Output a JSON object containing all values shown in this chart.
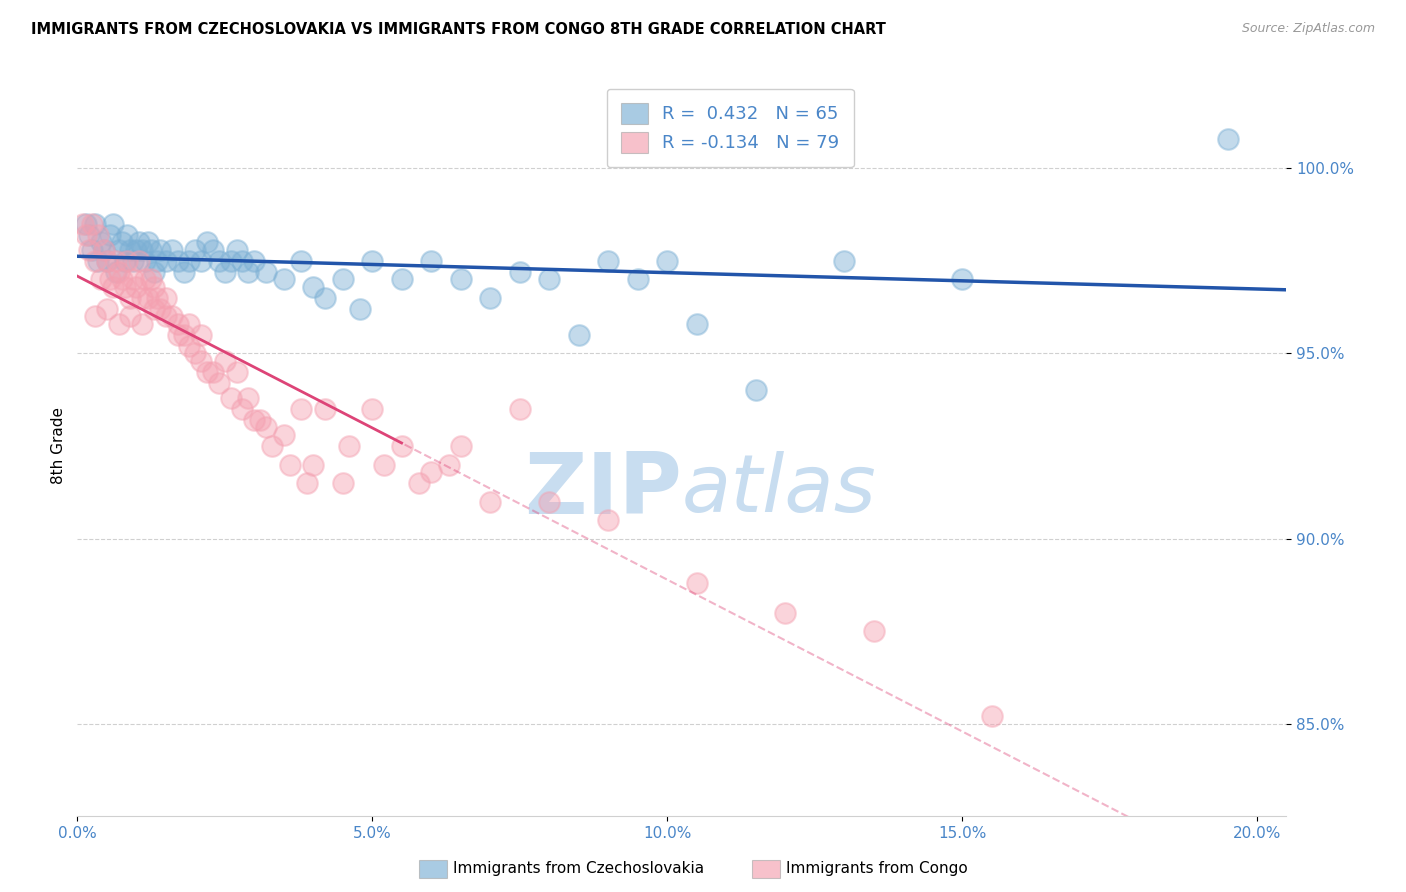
{
  "title": "IMMIGRANTS FROM CZECHOSLOVAKIA VS IMMIGRANTS FROM CONGO 8TH GRADE CORRELATION CHART",
  "source": "Source: ZipAtlas.com",
  "ylabel": "8th Grade",
  "y_ticks": [
    85.0,
    90.0,
    95.0,
    100.0
  ],
  "x_ticks": [
    0.0,
    5.0,
    10.0,
    15.0,
    20.0
  ],
  "xlim": [
    0.0,
    20.5
  ],
  "ylim": [
    82.5,
    102.5
  ],
  "legend_label_blue": "Immigrants from Czechoslovakia",
  "legend_label_pink": "Immigrants from Congo",
  "R_blue": 0.432,
  "N_blue": 65,
  "R_pink": -0.134,
  "N_pink": 79,
  "color_blue": "#7bafd4",
  "color_pink": "#f4a0b0",
  "color_trend_blue": "#2255aa",
  "color_trend_pink": "#dd4477",
  "color_axis_labels": "#4a86c8",
  "watermark_color": "#c8ddf0",
  "blue_x": [
    0.15,
    0.2,
    0.25,
    0.3,
    0.35,
    0.4,
    0.45,
    0.5,
    0.55,
    0.6,
    0.65,
    0.7,
    0.75,
    0.8,
    0.85,
    0.9,
    0.95,
    1.0,
    1.05,
    1.1,
    1.15,
    1.2,
    1.25,
    1.3,
    1.35,
    1.4,
    1.5,
    1.6,
    1.7,
    1.8,
    1.9,
    2.0,
    2.1,
    2.2,
    2.3,
    2.4,
    2.5,
    2.6,
    2.7,
    2.8,
    2.9,
    3.0,
    3.2,
    3.5,
    3.8,
    4.0,
    4.2,
    4.5,
    4.8,
    5.0,
    5.5,
    6.0,
    6.5,
    7.0,
    7.5,
    8.0,
    8.5,
    9.0,
    9.5,
    10.0,
    10.5,
    11.5,
    13.0,
    15.0,
    19.5
  ],
  "blue_y": [
    98.5,
    98.2,
    97.8,
    98.5,
    97.5,
    98.0,
    97.8,
    97.5,
    98.2,
    98.5,
    97.2,
    97.8,
    98.0,
    97.5,
    98.2,
    97.8,
    97.5,
    97.8,
    98.0,
    97.8,
    97.5,
    98.0,
    97.8,
    97.2,
    97.5,
    97.8,
    97.5,
    97.8,
    97.5,
    97.2,
    97.5,
    97.8,
    97.5,
    98.0,
    97.8,
    97.5,
    97.2,
    97.5,
    97.8,
    97.5,
    97.2,
    97.5,
    97.2,
    97.0,
    97.5,
    96.8,
    96.5,
    97.0,
    96.2,
    97.5,
    97.0,
    97.5,
    97.0,
    96.5,
    97.2,
    97.0,
    95.5,
    97.5,
    97.0,
    97.5,
    95.8,
    94.0,
    97.5,
    97.0,
    100.8
  ],
  "pink_x": [
    0.1,
    0.15,
    0.2,
    0.25,
    0.3,
    0.35,
    0.4,
    0.45,
    0.5,
    0.55,
    0.6,
    0.65,
    0.7,
    0.75,
    0.8,
    0.85,
    0.9,
    0.95,
    1.0,
    1.05,
    1.1,
    1.15,
    1.2,
    1.25,
    1.3,
    1.35,
    1.4,
    1.5,
    1.6,
    1.7,
    1.8,
    1.9,
    2.0,
    2.1,
    2.2,
    2.4,
    2.6,
    2.8,
    3.0,
    3.2,
    3.5,
    3.8,
    4.0,
    4.5,
    5.0,
    5.5,
    6.0,
    6.5,
    7.5,
    0.3,
    0.5,
    0.7,
    0.9,
    1.1,
    1.3,
    1.5,
    1.7,
    1.9,
    2.1,
    2.3,
    2.5,
    2.7,
    2.9,
    3.1,
    3.3,
    3.6,
    3.9,
    4.2,
    4.6,
    5.2,
    5.8,
    6.3,
    7.0,
    8.0,
    9.0,
    10.5,
    12.0,
    13.5,
    15.5
  ],
  "pink_y": [
    98.5,
    98.2,
    97.8,
    98.5,
    97.5,
    98.2,
    97.0,
    97.8,
    97.5,
    97.0,
    96.8,
    97.5,
    97.2,
    97.0,
    96.8,
    97.5,
    96.5,
    97.0,
    96.8,
    97.5,
    96.5,
    97.0,
    96.5,
    97.0,
    96.8,
    96.5,
    96.2,
    96.5,
    96.0,
    95.8,
    95.5,
    95.2,
    95.0,
    94.8,
    94.5,
    94.2,
    93.8,
    93.5,
    93.2,
    93.0,
    92.8,
    93.5,
    92.0,
    91.5,
    93.5,
    92.5,
    91.8,
    92.5,
    93.5,
    96.0,
    96.2,
    95.8,
    96.0,
    95.8,
    96.2,
    96.0,
    95.5,
    95.8,
    95.5,
    94.5,
    94.8,
    94.5,
    93.8,
    93.2,
    92.5,
    92.0,
    91.5,
    93.5,
    92.5,
    92.0,
    91.5,
    92.0,
    91.0,
    91.0,
    90.5,
    88.8,
    88.0,
    87.5,
    85.2
  ]
}
